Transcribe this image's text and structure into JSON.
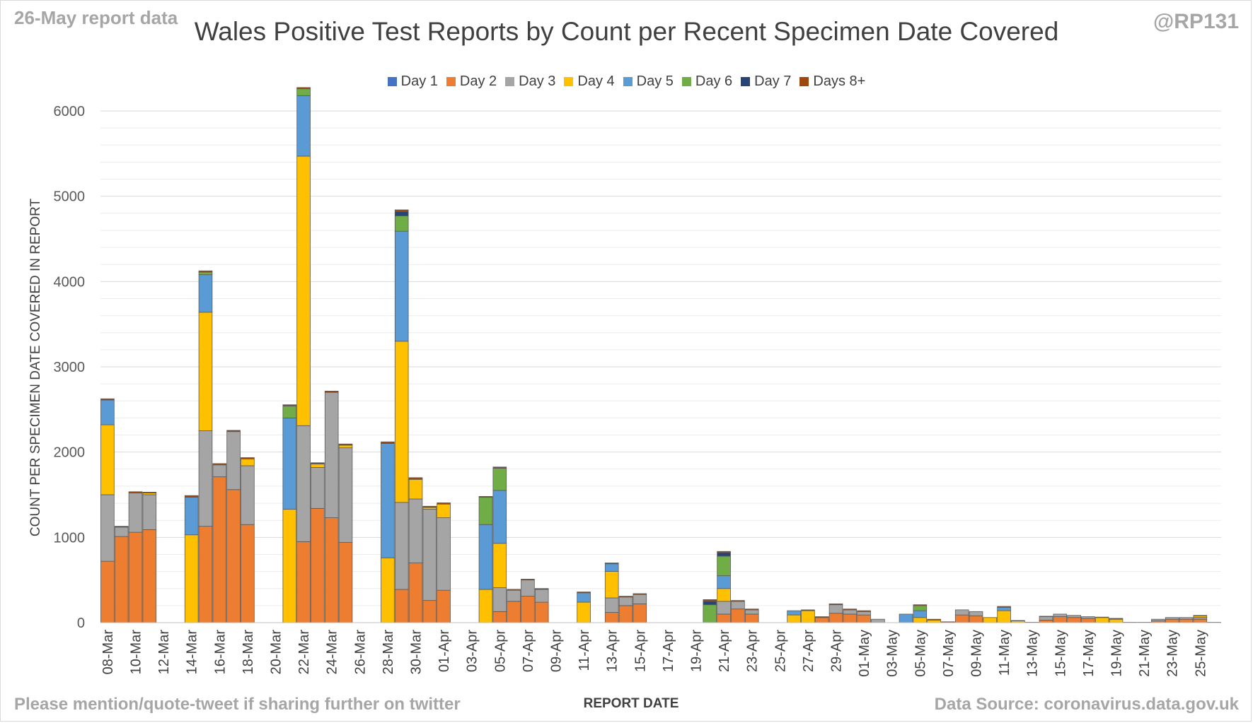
{
  "header": {
    "note": "26-May report data",
    "handle": "@RP131",
    "title": "Wales Positive Test Reports by Count per Recent Specimen Date Covered"
  },
  "footer": {
    "left": "Please mention/quote-tweet if sharing further on twitter",
    "right": "Data Source: coronavirus.data.gov.uk"
  },
  "chart_data": {
    "type": "bar",
    "stacked": true,
    "ylabel": "COUNT PER SPECIMEN DATE COVERED IN REPORT",
    "xlabel": "REPORT DATE",
    "ylim": [
      0,
      6000
    ],
    "yticks": [
      0,
      1000,
      2000,
      3000,
      4000,
      5000,
      6000
    ],
    "grid": true,
    "legend_position": "top",
    "x_tick_labels": [
      "08-Mar",
      "10-Mar",
      "12-Mar",
      "14-Mar",
      "16-Mar",
      "18-Mar",
      "20-Mar",
      "22-Mar",
      "24-Mar",
      "26-Mar",
      "28-Mar",
      "30-Mar",
      "01-Apr",
      "03-Apr",
      "05-Apr",
      "07-Apr",
      "09-Apr",
      "11-Apr",
      "13-Apr",
      "15-Apr",
      "17-Apr",
      "19-Apr",
      "21-Apr",
      "23-Apr",
      "25-Apr",
      "27-Apr",
      "29-Apr",
      "01-May",
      "03-May",
      "05-May",
      "07-May",
      "09-May",
      "11-May",
      "13-May",
      "15-May",
      "17-May",
      "19-May",
      "21-May",
      "23-May",
      "25-May"
    ],
    "categories": [
      "08-Mar",
      "09-Mar",
      "10-Mar",
      "11-Mar",
      "12-Mar",
      "13-Mar",
      "14-Mar",
      "15-Mar",
      "16-Mar",
      "17-Mar",
      "18-Mar",
      "19-Mar",
      "20-Mar",
      "21-Mar",
      "22-Mar",
      "23-Mar",
      "24-Mar",
      "25-Mar",
      "26-Mar",
      "27-Mar",
      "28-Mar",
      "29-Mar",
      "30-Mar",
      "31-Mar",
      "01-Apr",
      "02-Apr",
      "03-Apr",
      "04-Apr",
      "05-Apr",
      "06-Apr",
      "07-Apr",
      "08-Apr",
      "09-Apr",
      "10-Apr",
      "11-Apr",
      "12-Apr",
      "13-Apr",
      "14-Apr",
      "15-Apr",
      "16-Apr",
      "17-Apr",
      "18-Apr",
      "19-Apr",
      "20-Apr",
      "21-Apr",
      "22-Apr",
      "23-Apr",
      "24-Apr",
      "25-Apr",
      "26-Apr",
      "27-Apr",
      "28-Apr",
      "29-Apr",
      "30-Apr",
      "01-May",
      "02-May",
      "03-May",
      "04-May",
      "05-May",
      "06-May",
      "07-May",
      "08-May",
      "09-May",
      "10-May",
      "11-May",
      "12-May",
      "13-May",
      "14-May",
      "15-May",
      "16-May",
      "17-May",
      "18-May",
      "19-May",
      "20-May",
      "21-May",
      "22-May",
      "23-May",
      "24-May",
      "25-May",
      "26-May"
    ],
    "series": [
      {
        "name": "Day 1",
        "color": "#4472c4",
        "values": [
          0,
          0,
          0,
          0,
          0,
          0,
          0,
          0,
          0,
          0,
          0,
          0,
          0,
          0,
          0,
          0,
          0,
          0,
          0,
          0,
          0,
          0,
          0,
          0,
          0,
          0,
          0,
          0,
          0,
          0,
          0,
          0,
          0,
          0,
          0,
          0,
          0,
          0,
          0,
          0,
          0,
          0,
          0,
          0,
          0,
          0,
          0,
          0,
          0,
          0,
          0,
          0,
          0,
          0,
          0,
          0,
          0,
          0,
          0,
          0,
          0,
          0,
          0,
          0,
          0,
          0,
          0,
          0,
          0,
          0,
          0,
          0,
          0,
          0,
          0,
          0,
          0,
          0,
          0,
          0
        ]
      },
      {
        "name": "Day 2",
        "color": "#ed7d31",
        "values": [
          720,
          1010,
          1060,
          1090,
          0,
          0,
          0,
          1130,
          1710,
          1560,
          1150,
          0,
          0,
          0,
          950,
          1340,
          1230,
          940,
          0,
          0,
          0,
          390,
          700,
          260,
          380,
          0,
          0,
          0,
          130,
          250,
          310,
          240,
          0,
          0,
          0,
          0,
          120,
          200,
          220,
          0,
          0,
          0,
          0,
          0,
          100,
          160,
          100,
          0,
          0,
          0,
          0,
          60,
          110,
          100,
          90,
          0,
          0,
          0,
          0,
          0,
          0,
          90,
          80,
          0,
          0,
          0,
          0,
          30,
          70,
          60,
          50,
          0,
          0,
          0,
          0,
          20,
          40,
          40,
          40,
          0
        ]
      },
      {
        "name": "Day 3",
        "color": "#a5a5a5",
        "values": [
          780,
          110,
          460,
          410,
          0,
          0,
          0,
          1120,
          140,
          680,
          690,
          0,
          0,
          0,
          1360,
          480,
          1470,
          1110,
          0,
          0,
          0,
          1020,
          750,
          1070,
          850,
          0,
          0,
          0,
          280,
          130,
          190,
          150,
          0,
          0,
          0,
          0,
          170,
          100,
          110,
          0,
          0,
          0,
          0,
          0,
          150,
          90,
          50,
          0,
          0,
          0,
          0,
          0,
          100,
          50,
          40,
          40,
          0,
          0,
          0,
          0,
          0,
          60,
          50,
          0,
          0,
          0,
          0,
          40,
          30,
          25,
          20,
          0,
          0,
          0,
          0,
          20,
          20,
          20,
          20,
          0
        ]
      },
      {
        "name": "Day 4",
        "color": "#ffc000",
        "values": [
          820,
          0,
          0,
          20,
          0,
          0,
          1030,
          1390,
          0,
          0,
          80,
          0,
          0,
          1330,
          3160,
          40,
          0,
          30,
          0,
          0,
          760,
          1890,
          230,
          20,
          160,
          0,
          0,
          390,
          520,
          0,
          0,
          0,
          0,
          0,
          240,
          0,
          310,
          0,
          0,
          0,
          0,
          0,
          0,
          0,
          150,
          0,
          0,
          0,
          0,
          90,
          140,
          0,
          0,
          0,
          0,
          0,
          0,
          0,
          60,
          30,
          0,
          0,
          0,
          60,
          140,
          20,
          0,
          0,
          0,
          0,
          0,
          60,
          40,
          0,
          0,
          0,
          0,
          0,
          20,
          0
        ]
      },
      {
        "name": "Day 5",
        "color": "#5b9bd5",
        "values": [
          290,
          0,
          0,
          0,
          0,
          0,
          440,
          440,
          0,
          0,
          0,
          0,
          0,
          1070,
          710,
          0,
          0,
          0,
          0,
          0,
          1340,
          1290,
          0,
          0,
          0,
          0,
          0,
          760,
          620,
          0,
          0,
          0,
          0,
          0,
          110,
          0,
          90,
          0,
          0,
          0,
          0,
          0,
          0,
          0,
          150,
          0,
          0,
          0,
          0,
          50,
          0,
          0,
          0,
          0,
          0,
          0,
          0,
          100,
          80,
          0,
          0,
          0,
          0,
          0,
          40,
          0,
          0,
          0,
          0,
          0,
          0,
          0,
          0,
          0,
          0,
          0,
          0,
          0,
          0,
          0
        ]
      },
      {
        "name": "Day 6",
        "color": "#70ad47",
        "values": [
          0,
          0,
          0,
          0,
          0,
          0,
          0,
          30,
          0,
          0,
          0,
          0,
          0,
          140,
          80,
          0,
          0,
          0,
          0,
          0,
          0,
          180,
          0,
          0,
          0,
          0,
          0,
          320,
          260,
          0,
          0,
          0,
          0,
          0,
          0,
          0,
          0,
          0,
          0,
          0,
          0,
          0,
          0,
          210,
          230,
          0,
          0,
          0,
          0,
          0,
          0,
          0,
          0,
          0,
          0,
          0,
          0,
          0,
          60,
          0,
          0,
          0,
          0,
          0,
          0,
          0,
          0,
          0,
          0,
          0,
          0,
          0,
          0,
          0,
          0,
          0,
          0,
          0,
          0,
          0
        ]
      },
      {
        "name": "Day 7",
        "color": "#264478",
        "values": [
          0,
          0,
          0,
          0,
          0,
          0,
          0,
          0,
          0,
          0,
          0,
          0,
          0,
          0,
          0,
          0,
          0,
          0,
          0,
          0,
          0,
          50,
          0,
          0,
          0,
          0,
          0,
          0,
          0,
          0,
          0,
          0,
          0,
          0,
          0,
          0,
          0,
          0,
          0,
          0,
          0,
          0,
          0,
          40,
          40,
          0,
          0,
          0,
          0,
          0,
          0,
          0,
          0,
          0,
          0,
          0,
          0,
          0,
          0,
          0,
          0,
          0,
          0,
          0,
          0,
          0,
          0,
          0,
          0,
          0,
          0,
          0,
          0,
          0,
          0,
          0,
          0,
          0,
          0,
          0
        ]
      },
      {
        "name": "Days 8+",
        "color": "#9e480e",
        "values": [
          15,
          10,
          15,
          10,
          0,
          0,
          20,
          15,
          15,
          15,
          15,
          0,
          0,
          15,
          15,
          15,
          15,
          15,
          0,
          0,
          20,
          20,
          20,
          15,
          15,
          0,
          0,
          10,
          15,
          10,
          10,
          10,
          0,
          0,
          10,
          0,
          10,
          10,
          10,
          0,
          0,
          0,
          0,
          20,
          15,
          10,
          10,
          0,
          0,
          0,
          10,
          10,
          10,
          10,
          10,
          0,
          0,
          0,
          10,
          10,
          10,
          0,
          0,
          0,
          10,
          5,
          5,
          5,
          0,
          0,
          0,
          5,
          10,
          5,
          5,
          0,
          0,
          0,
          5,
          5
        ]
      }
    ]
  }
}
